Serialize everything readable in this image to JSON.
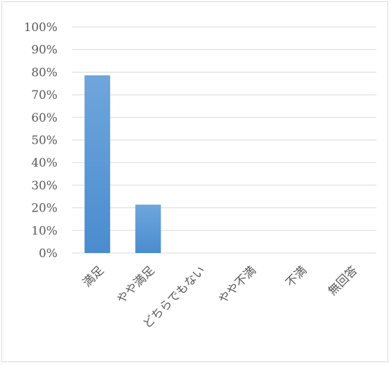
{
  "chart_data": {
    "type": "bar",
    "categories": [
      "満足",
      "やや満足",
      "どちらでもない",
      "やや不満",
      "不満",
      "無回答"
    ],
    "values": [
      78.6,
      21.4,
      0,
      0,
      0,
      0
    ],
    "y_tick_labels": [
      "0%",
      "10%",
      "20%",
      "30%",
      "40%",
      "50%",
      "60%",
      "70%",
      "80%",
      "90%",
      "100%"
    ],
    "ylim": [
      0,
      100
    ],
    "y_unit": "%",
    "grid": true,
    "legend": "none",
    "bar_color": "#5b9bd5",
    "bar_color_dark": "#4a8ccf"
  }
}
